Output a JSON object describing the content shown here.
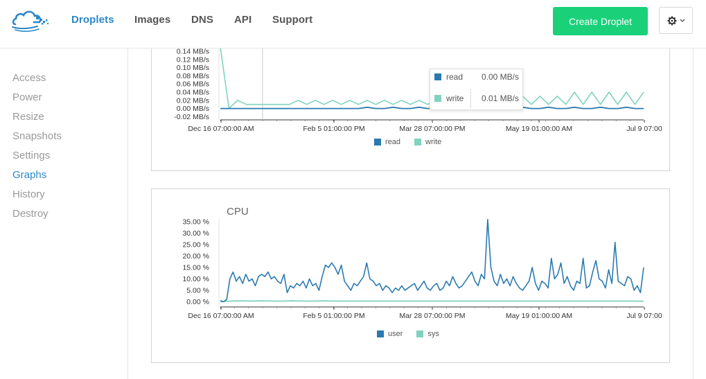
{
  "nav": {
    "items": [
      {
        "label": "Droplets",
        "active": true
      },
      {
        "label": "Images",
        "active": false
      },
      {
        "label": "DNS",
        "active": false
      },
      {
        "label": "API",
        "active": false
      },
      {
        "label": "Support",
        "active": false
      }
    ],
    "create_label": "Create Droplet"
  },
  "sidebar": {
    "items": [
      {
        "label": "Access",
        "active": false
      },
      {
        "label": "Power",
        "active": false
      },
      {
        "label": "Resize",
        "active": false
      },
      {
        "label": "Snapshots",
        "active": false
      },
      {
        "label": "Settings",
        "active": false
      },
      {
        "label": "Graphs",
        "active": true
      },
      {
        "label": "History",
        "active": false
      },
      {
        "label": "Destroy",
        "active": false
      }
    ]
  },
  "colors": {
    "accent": "#2a87c9",
    "create": "#1ad17a",
    "series_dark": "#2a7ab0",
    "series_light": "#7fd3bf"
  },
  "disk_tooltip": {
    "read_label": "read",
    "read_value": "0.00 MB/s",
    "write_label": "write",
    "write_value": "0.01 MB/s"
  },
  "chart_data": [
    {
      "type": "line",
      "title": "",
      "y_ticks": [
        "0.14 MB/s",
        "0.12 MB/s",
        "0.10 MB/s",
        "0.08 MB/s",
        "0.06 MB/s",
        "0.04 MB/s",
        "0.02 MB/s",
        "0.00 MB/s",
        "-0.02 MB/s"
      ],
      "x_ticks": [
        "Dec 16 07:00:00 AM",
        "Feb 5 01:00:00 PM",
        "Mar 28 07:00:00 PM",
        "May 19 01:00:00 AM",
        "Jul 9 07:00"
      ],
      "ylim": [
        -0.02,
        0.14
      ],
      "legend": [
        "read",
        "write"
      ],
      "series": [
        {
          "name": "read",
          "baseline": 0.0,
          "spikes": [
            0.0,
            0.01,
            0.01,
            0.01,
            0.01,
            0.01,
            0.01,
            0.01,
            0.01,
            0.01,
            0.01,
            0.01,
            0.01,
            0.01,
            0.01,
            0.01
          ]
        },
        {
          "name": "write",
          "values": [
            0.15,
            0.0,
            0.02,
            0.01,
            0.01,
            0.01,
            0.01,
            0.01,
            0.01,
            0.02,
            0.01,
            0.02,
            0.01,
            0.02,
            0.01,
            0.02,
            0.01,
            0.02,
            0.01,
            0.02,
            0.01,
            0.02,
            0.01,
            0.02,
            0.01,
            0.02,
            0.01,
            0.02,
            0.01,
            0.02,
            0.01,
            0.02,
            0.01,
            0.03,
            0.01,
            0.03,
            0.01,
            0.03,
            0.01,
            0.03,
            0.01,
            0.04,
            0.01,
            0.04,
            0.01,
            0.04,
            0.01,
            0.04,
            0.01,
            0.04
          ]
        }
      ]
    },
    {
      "type": "line",
      "title": "CPU",
      "y_ticks": [
        "35.00 %",
        "30.00 %",
        "25.00 %",
        "20.00 %",
        "15.00 %",
        "10.00 %",
        "5.00 %",
        "0.00 %"
      ],
      "x_ticks": [
        "Dec 16 07:00:00 AM",
        "Feb 5 01:00:00 PM",
        "Mar 28 07:00:00 PM",
        "May 19 01:00:00 AM",
        "Jul 9 07:00"
      ],
      "ylim": [
        0,
        35
      ],
      "legend": [
        "user",
        "sys"
      ],
      "series": [
        {
          "name": "user",
          "values": [
            0.5,
            0,
            1,
            10,
            13,
            9,
            11,
            8,
            12,
            9,
            10,
            7,
            11,
            12,
            11,
            13,
            10,
            11,
            9,
            8,
            12,
            4,
            7,
            6,
            8,
            7,
            9,
            6,
            10,
            7,
            8,
            5,
            11,
            16,
            15,
            17,
            15,
            12,
            16,
            9,
            7,
            5,
            8,
            7,
            9,
            11,
            17,
            10,
            9,
            7,
            8,
            5,
            7,
            6,
            4,
            6,
            5,
            7,
            5,
            6,
            7,
            8,
            5,
            7,
            9,
            6,
            5,
            7,
            8,
            5,
            6,
            9,
            7,
            11,
            8,
            6,
            7,
            9,
            11,
            13,
            9,
            7,
            12,
            10,
            36,
            15,
            9,
            7,
            12,
            8,
            10,
            7,
            11,
            8,
            6,
            5,
            7,
            9,
            15,
            8,
            5,
            9,
            8,
            6,
            19,
            10,
            12,
            17,
            8,
            11,
            7,
            5,
            9,
            8,
            19,
            6,
            7,
            13,
            18,
            10,
            9,
            6,
            14,
            8,
            26,
            9,
            8,
            7,
            11,
            10,
            5,
            7,
            4,
            15
          ]
        },
        {
          "name": "sys",
          "values": [
            0.0,
            0.3,
            0.4,
            0.3,
            0.4,
            0.3,
            0.3,
            0.4,
            0.3,
            0.3,
            0.4,
            0.3,
            0.3,
            0.3,
            0.3,
            0.3,
            0.3,
            0.3,
            0.3,
            0.3,
            0.3,
            0.3,
            0.3,
            0.3,
            0.3,
            0.3,
            0.3,
            0.3,
            0.3,
            0.3,
            0.3,
            0.3,
            0.3,
            0.3,
            0.3,
            0.3,
            0.3,
            0.3,
            0.3,
            0.3,
            0.3,
            0.2
          ]
        }
      ]
    }
  ]
}
